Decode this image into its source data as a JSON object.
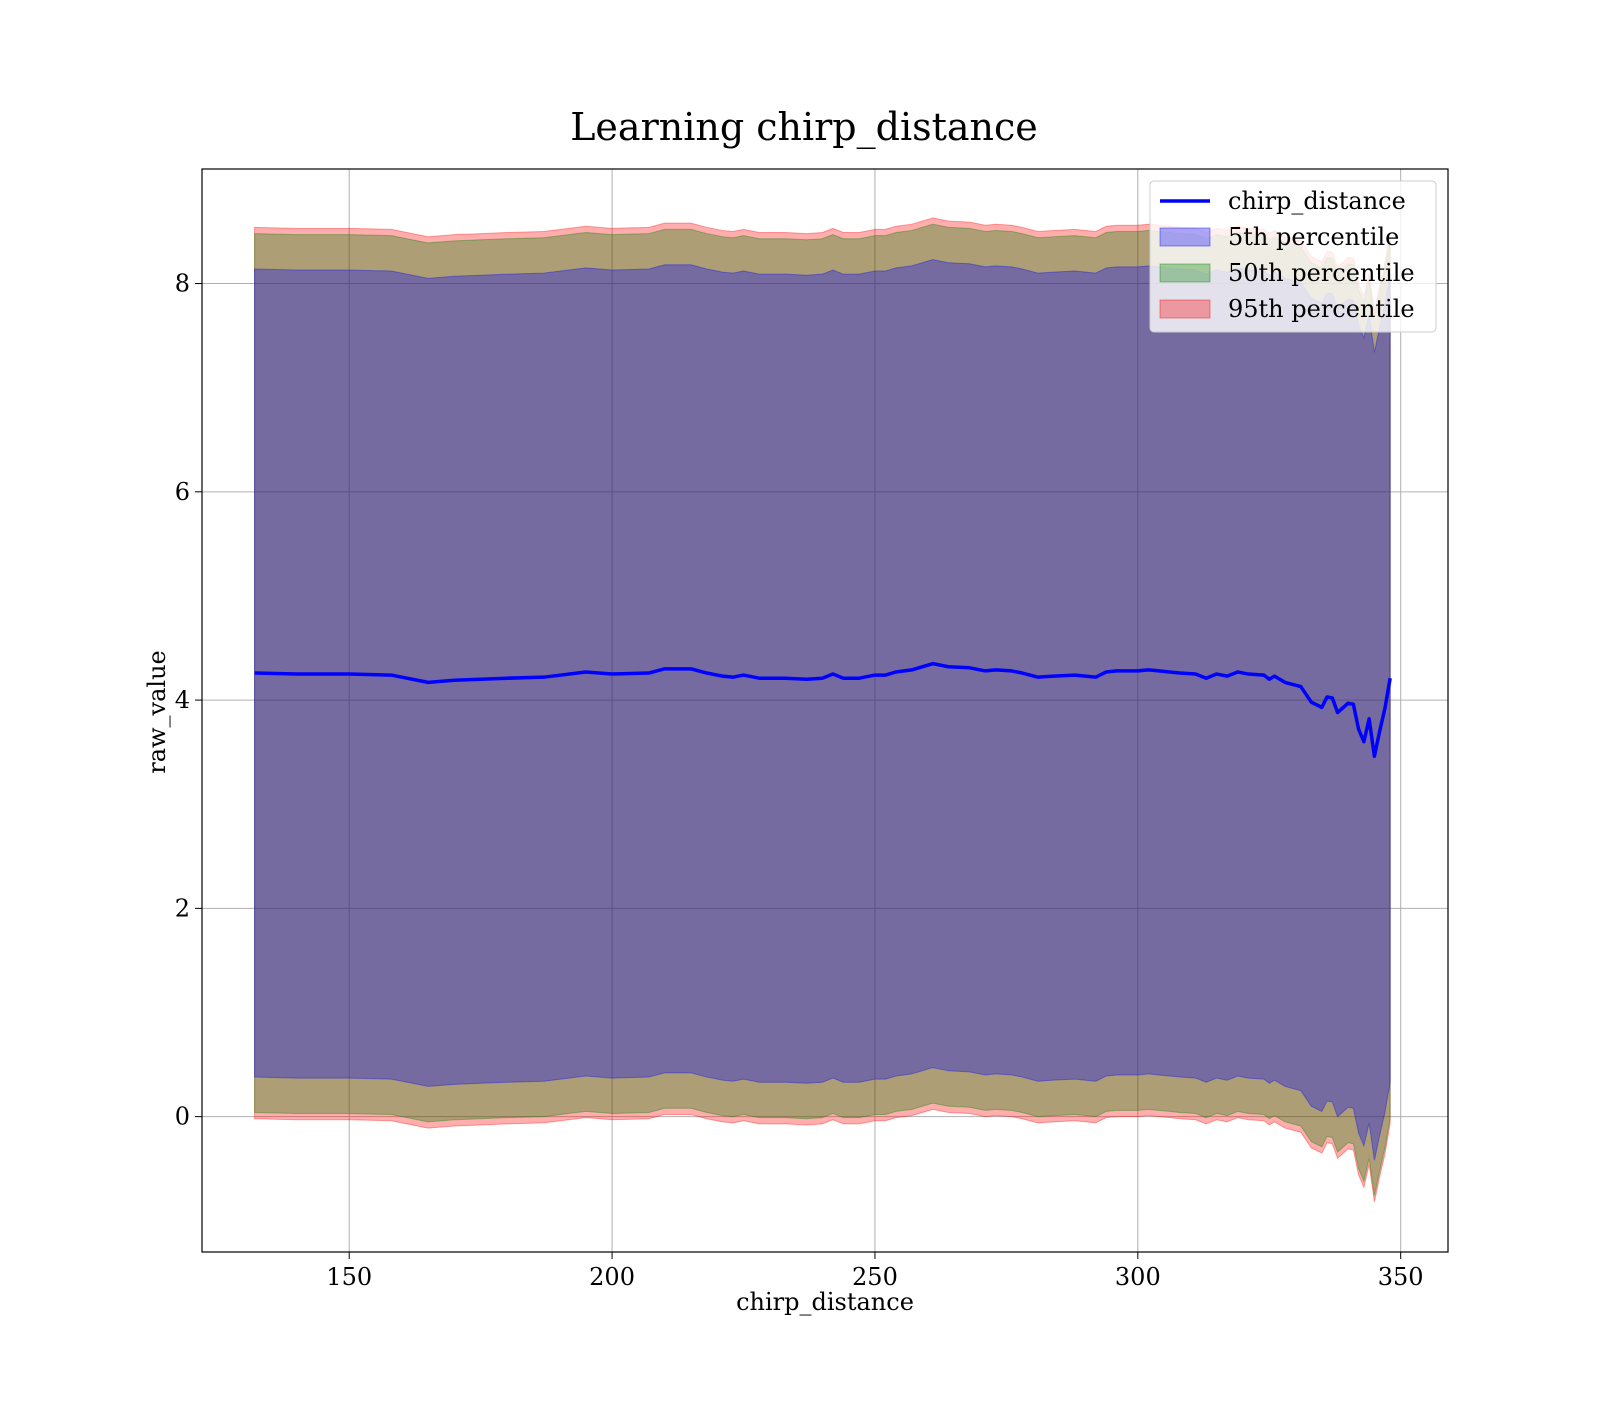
{
  "chart_data": {
    "type": "area",
    "title": "Learning chirp_distance",
    "xlabel": "chirp_distance",
    "ylabel": "raw_value",
    "xlim": [
      122,
      359
    ],
    "ylim": [
      -1.3,
      9.1
    ],
    "xticks": [
      150,
      200,
      250,
      300,
      350
    ],
    "yticks": [
      0,
      2,
      4,
      6,
      8
    ],
    "grid": true,
    "legend_position": "top-right",
    "x": [
      132,
      140,
      150,
      158,
      165,
      170,
      175,
      180,
      187,
      195,
      200,
      207,
      210,
      215,
      218,
      221,
      223,
      225,
      228,
      233,
      237,
      240,
      242,
      244,
      247,
      250,
      252,
      254,
      257,
      261,
      264,
      268,
      271,
      273,
      276,
      278,
      281,
      284,
      288,
      292,
      294,
      296,
      300,
      302,
      304,
      306,
      308,
      311,
      313,
      315,
      317,
      319,
      321,
      324,
      325,
      326,
      328,
      331,
      333,
      335,
      336,
      337,
      338,
      340,
      341,
      342,
      343,
      344,
      345,
      346,
      347,
      348
    ],
    "series": [
      {
        "name": "chirp_distance",
        "kind": "line",
        "color": "#0000ff",
        "values": [
          4.26,
          4.25,
          4.25,
          4.24,
          4.17,
          4.19,
          4.2,
          4.21,
          4.22,
          4.27,
          4.25,
          4.26,
          4.3,
          4.3,
          4.26,
          4.23,
          4.22,
          4.24,
          4.21,
          4.21,
          4.2,
          4.21,
          4.25,
          4.21,
          4.21,
          4.24,
          4.24,
          4.27,
          4.29,
          4.35,
          4.32,
          4.31,
          4.28,
          4.29,
          4.28,
          4.26,
          4.22,
          4.23,
          4.24,
          4.22,
          4.27,
          4.28,
          4.28,
          4.29,
          4.28,
          4.27,
          4.26,
          4.25,
          4.21,
          4.25,
          4.23,
          4.27,
          4.25,
          4.24,
          4.2,
          4.23,
          4.17,
          4.13,
          3.98,
          3.93,
          4.03,
          4.02,
          3.88,
          3.97,
          3.96,
          3.72,
          3.6,
          3.82,
          3.46,
          3.7,
          3.92,
          4.21
        ]
      },
      {
        "name": "5th percentile",
        "kind": "band",
        "color": "#0000ff",
        "half_width": 3.88
      },
      {
        "name": "50th percentile",
        "kind": "band",
        "color": "#008000",
        "half_width": 4.22
      },
      {
        "name": "95th percentile",
        "kind": "band",
        "color": "#ff0000",
        "half_width": 4.28
      }
    ]
  }
}
